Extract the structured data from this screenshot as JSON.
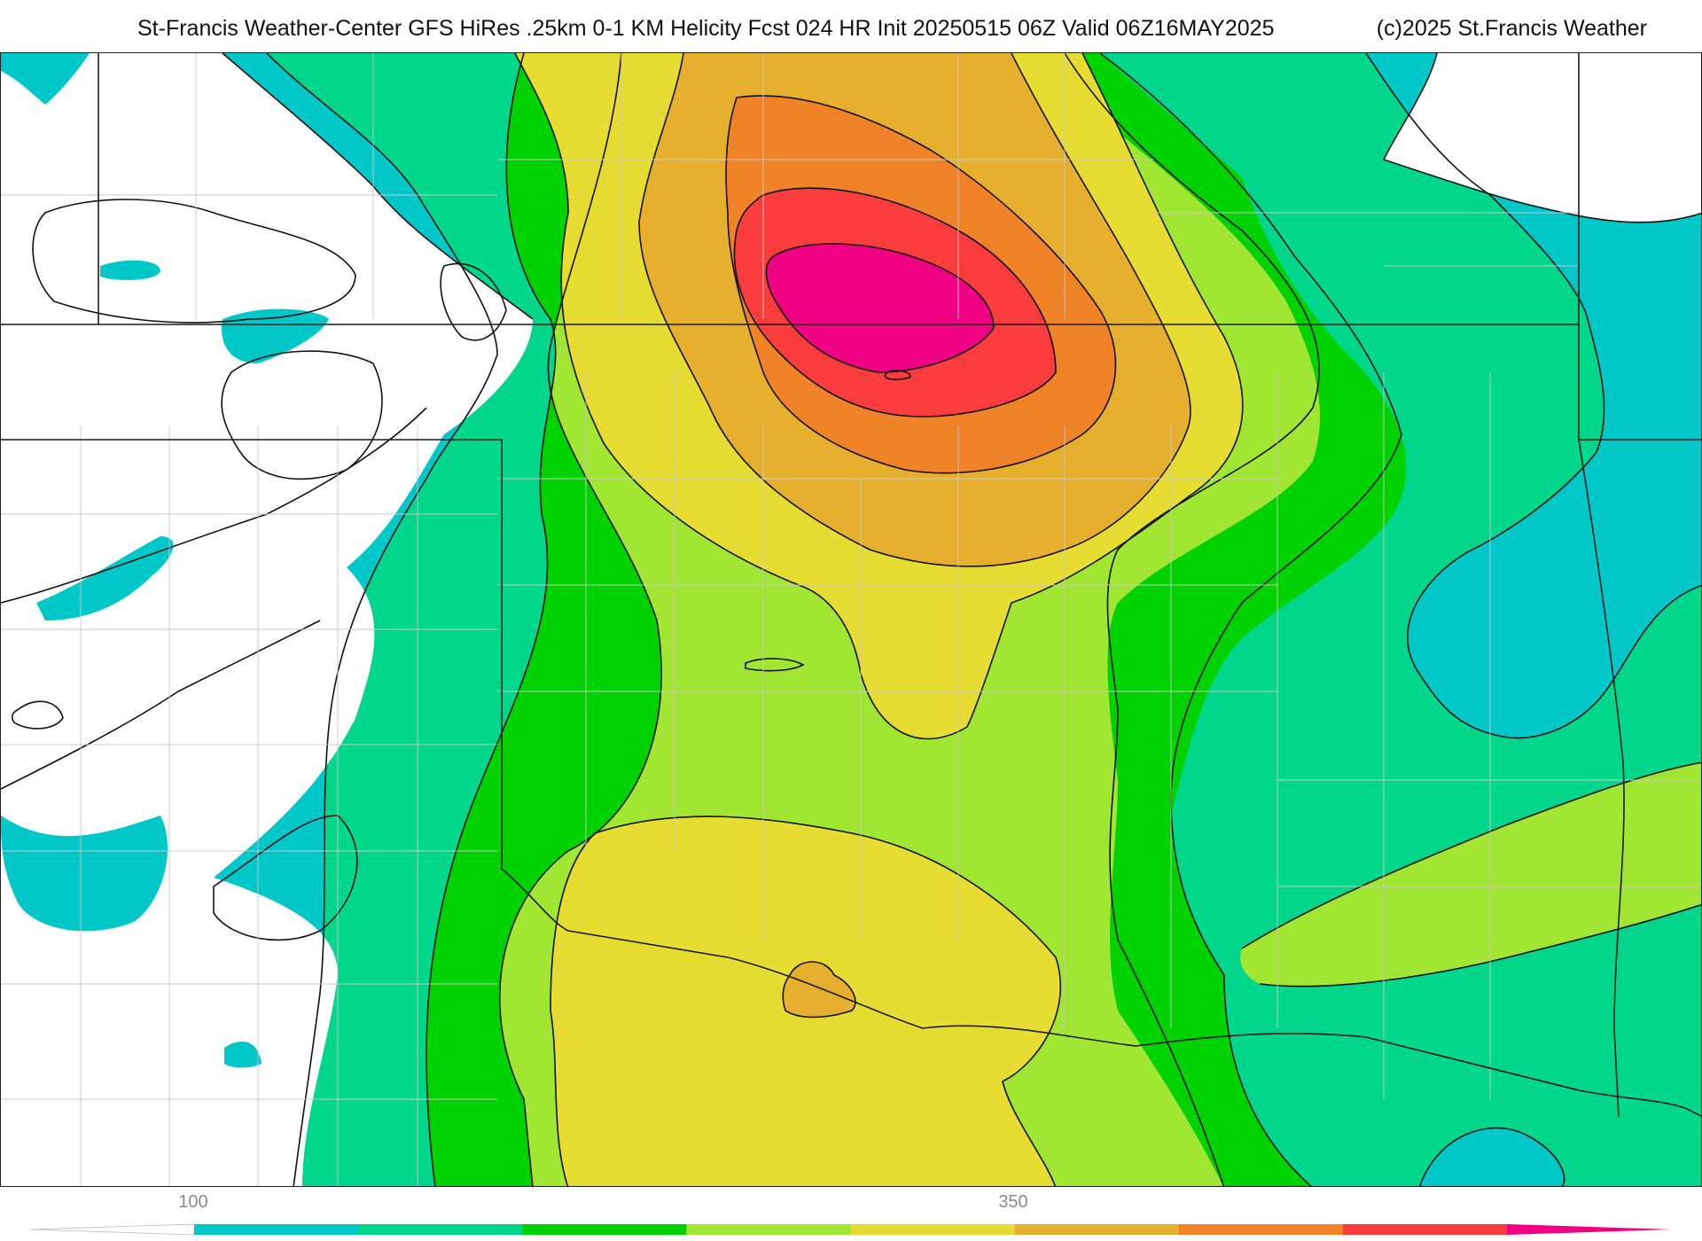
{
  "header": {
    "title": "St-Francis Weather-Center GFS HiRes .25km 0-1 KM Helicity Fcst 024 HR Init 20250515 06Z  Valid 06Z16MAY2025",
    "copyright": "(c)2025 St.Francis Weather"
  },
  "legend": {
    "tick_labels": [
      "100",
      "350"
    ],
    "bins": [
      "#ffffff",
      "#00c8c8",
      "#00d78c",
      "#00d200",
      "#a0e632",
      "#e6dc32",
      "#e6af2d",
      "#f08228",
      "#fa3c3c",
      "#f00082"
    ]
  },
  "map": {
    "fill_colors": {
      "below_100": "#ffffff",
      "cyan": "#00c8c8",
      "sea_green": "#00d78c",
      "green": "#00d200",
      "yellow_green": "#a0e632",
      "yellow": "#e6dc32",
      "gold": "#e6af2d",
      "orange": "#f08228",
      "red": "#fa3c3c",
      "magenta": "#f00082"
    },
    "contour_color": "#111111",
    "county_line_color": "#c8c8c8",
    "state_line_color": "#1a1a1a"
  }
}
